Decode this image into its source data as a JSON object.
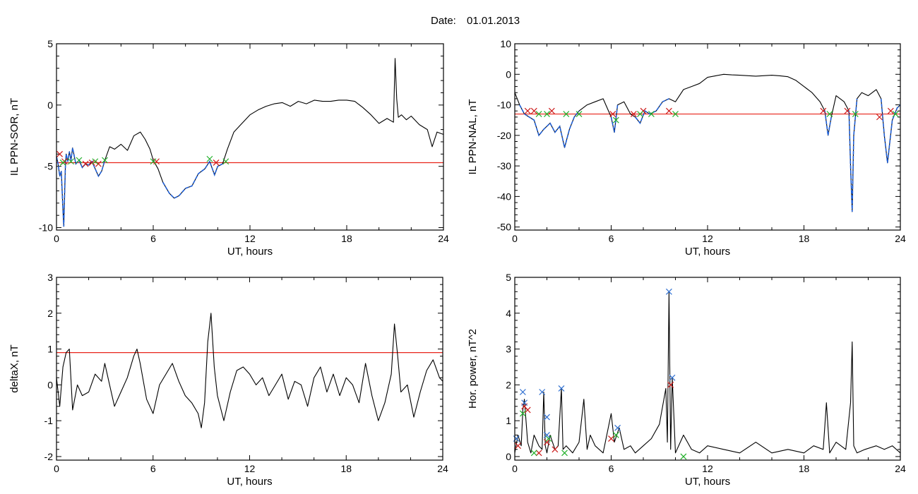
{
  "header": {
    "date_label": "Date:",
    "date_value": "01.01.2013"
  },
  "colors": {
    "trace": "#000000",
    "highlight": "#1f5fd6",
    "threshold": "#e8241a",
    "marker_red": "#cc1a1a",
    "marker_green": "#22b02a",
    "marker_blue": "#2f6fd0"
  },
  "chart_data": [
    {
      "id": "sor",
      "type": "line",
      "xlabel": "UT, hours",
      "ylabel": "IL PPN-SOR, nT",
      "xlim": [
        0,
        24
      ],
      "ylim": [
        -10.2,
        5
      ],
      "xticks": [
        0,
        6,
        12,
        18,
        24
      ],
      "yticks": [
        -10,
        -5,
        0,
        5
      ],
      "threshold": -4.7,
      "series": [
        {
          "x": [
            0,
            0.1,
            0.2,
            0.3,
            0.4,
            0.45,
            0.5,
            0.55,
            0.6,
            0.7,
            0.8,
            0.9,
            1.0,
            1.2,
            1.4,
            1.6,
            1.8,
            2.0,
            2.2,
            2.4,
            2.6,
            2.8,
            3.0,
            3.3,
            3.6,
            4.0,
            4.4,
            4.8,
            5.2,
            5.5,
            5.8,
            6.0,
            6.3,
            6.6,
            7.0,
            7.3,
            7.6,
            8.0,
            8.4,
            8.8,
            9.2,
            9.5,
            9.8,
            10.0,
            10.3,
            10.6,
            11.0,
            11.5,
            12.0,
            12.5,
            13.0,
            13.5,
            14.0,
            14.5,
            15.0,
            15.5,
            16.0,
            16.5,
            17.0,
            17.5,
            18.0,
            18.5,
            19.0,
            19.5,
            20.0,
            20.5,
            20.9,
            21.0,
            21.1,
            21.2,
            21.4,
            21.7,
            22.0,
            22.5,
            23.0,
            23.3,
            23.6,
            24.0
          ],
          "values": [
            -4.2,
            -4.8,
            -5.8,
            -5.4,
            -8.5,
            -9.9,
            -7.5,
            -5.0,
            -4.0,
            -4.6,
            -3.8,
            -4.5,
            -3.5,
            -4.8,
            -4.5,
            -5.1,
            -4.8,
            -4.9,
            -4.6,
            -5.2,
            -5.8,
            -5.4,
            -4.5,
            -3.4,
            -3.6,
            -3.2,
            -3.7,
            -2.5,
            -2.2,
            -2.8,
            -3.6,
            -4.5,
            -5.2,
            -6.3,
            -7.2,
            -7.6,
            -7.4,
            -6.8,
            -6.6,
            -5.6,
            -5.2,
            -4.6,
            -5.7,
            -5.0,
            -4.8,
            -3.6,
            -2.2,
            -1.5,
            -0.8,
            -0.4,
            -0.1,
            0.1,
            0.2,
            -0.1,
            0.3,
            0.1,
            0.4,
            0.3,
            0.3,
            0.4,
            0.4,
            0.3,
            -0.2,
            -0.8,
            -1.5,
            -1.1,
            -1.4,
            3.8,
            0.5,
            -1.0,
            -0.8,
            -1.2,
            -0.9,
            -1.6,
            -2.0,
            -3.4,
            -2.2,
            -2.4
          ]
        }
      ],
      "highlight_ranges": [
        [
          0,
          3.0
        ],
        [
          6.4,
          10.5
        ]
      ],
      "markers_red": [
        [
          0.2,
          -4.0
        ],
        [
          0.5,
          -4.6
        ],
        [
          1.8,
          -4.8
        ],
        [
          2.2,
          -4.7
        ],
        [
          2.6,
          -4.8
        ],
        [
          6.2,
          -4.6
        ],
        [
          9.9,
          -4.7
        ]
      ],
      "markers_green": [
        [
          0.4,
          -4.7
        ],
        [
          0.9,
          -4.6
        ],
        [
          1.4,
          -4.5
        ],
        [
          2.4,
          -4.6
        ],
        [
          3.0,
          -4.5
        ],
        [
          6.0,
          -4.6
        ],
        [
          9.5,
          -4.4
        ],
        [
          10.5,
          -4.6
        ]
      ],
      "markers_blue": []
    },
    {
      "id": "nal",
      "type": "line",
      "xlabel": "UT, hours",
      "ylabel": "IL PPN-NAL, nT",
      "xlim": [
        0,
        24
      ],
      "ylim": [
        -51,
        10
      ],
      "xticks": [
        0,
        6,
        12,
        18,
        24
      ],
      "yticks": [
        -50,
        -40,
        -30,
        -20,
        -10,
        0,
        10
      ],
      "threshold": -13,
      "series": [
        {
          "x": [
            0,
            0.3,
            0.6,
            0.9,
            1.2,
            1.5,
            1.8,
            2.0,
            2.2,
            2.5,
            2.8,
            3.1,
            3.4,
            3.7,
            4.0,
            4.5,
            5.0,
            5.5,
            6.0,
            6.2,
            6.4,
            6.8,
            7.2,
            7.5,
            7.8,
            8.1,
            8.4,
            8.8,
            9.2,
            9.6,
            10.0,
            10.5,
            11.0,
            11.5,
            12.0,
            12.5,
            13.0,
            13.5,
            14.0,
            15.0,
            16.0,
            16.5,
            17.0,
            17.5,
            18.0,
            18.5,
            19.0,
            19.3,
            19.5,
            19.7,
            20.0,
            20.5,
            20.8,
            20.9,
            21.0,
            21.1,
            21.3,
            21.6,
            22.0,
            22.5,
            22.8,
            23.0,
            23.2,
            23.5,
            23.8,
            24.0
          ],
          "values": [
            -6,
            -10,
            -13,
            -14,
            -15,
            -20,
            -18,
            -17,
            -16,
            -19,
            -17,
            -24,
            -18,
            -14,
            -12,
            -10,
            -9,
            -8,
            -14,
            -19,
            -10,
            -9,
            -13,
            -14,
            -16,
            -12,
            -13,
            -12,
            -9,
            -8,
            -9,
            -5,
            -4,
            -3,
            -1,
            -0.5,
            0,
            -0.2,
            -0.3,
            -0.6,
            -0.3,
            -0.5,
            -0.8,
            -2,
            -4,
            -6,
            -9,
            -12,
            -20,
            -14,
            -7,
            -9,
            -12,
            -30,
            -45,
            -20,
            -8,
            -6,
            -7,
            -5,
            -8,
            -20,
            -29,
            -15,
            -11,
            -10
          ]
        }
      ],
      "highlight_ranges": [
        [
          0.3,
          4.0
        ],
        [
          6.0,
          6.4
        ],
        [
          7.3,
          9.9
        ],
        [
          19.2,
          19.7
        ],
        [
          20.7,
          21.3
        ],
        [
          22.7,
          24
        ]
      ],
      "markers_red": [
        [
          0.8,
          -12
        ],
        [
          1.2,
          -12
        ],
        [
          2.3,
          -12
        ],
        [
          6.1,
          -13
        ],
        [
          7.4,
          -13
        ],
        [
          8.0,
          -12
        ],
        [
          9.6,
          -12
        ],
        [
          19.2,
          -12
        ],
        [
          20.7,
          -12
        ],
        [
          22.7,
          -14
        ],
        [
          23.4,
          -12
        ]
      ],
      "markers_green": [
        [
          1.5,
          -13
        ],
        [
          2.0,
          -13
        ],
        [
          3.2,
          -13
        ],
        [
          4.0,
          -13
        ],
        [
          6.3,
          -15
        ],
        [
          7.8,
          -13
        ],
        [
          8.5,
          -13
        ],
        [
          10.0,
          -13
        ],
        [
          19.6,
          -13
        ],
        [
          21.2,
          -13
        ],
        [
          23.7,
          -13
        ]
      ],
      "markers_blue": []
    },
    {
      "id": "deltax",
      "type": "line",
      "xlabel": "UT, hours",
      "ylabel": "deltaX, nT",
      "xlim": [
        0,
        24
      ],
      "ylim": [
        -2.1,
        3
      ],
      "xticks": [
        0,
        6,
        12,
        18,
        24
      ],
      "yticks": [
        -2,
        -1,
        0,
        1,
        2,
        3
      ],
      "threshold": 0.9,
      "series": [
        {
          "x": [
            0,
            0.2,
            0.4,
            0.6,
            0.8,
            1.0,
            1.3,
            1.6,
            2.0,
            2.4,
            2.8,
            3.0,
            3.3,
            3.6,
            4.0,
            4.4,
            4.8,
            5.0,
            5.2,
            5.6,
            6.0,
            6.4,
            6.8,
            7.2,
            7.6,
            8.0,
            8.4,
            8.8,
            9.0,
            9.2,
            9.4,
            9.6,
            9.8,
            10.0,
            10.4,
            10.8,
            11.2,
            11.6,
            12.0,
            12.4,
            12.8,
            13.2,
            13.6,
            14.0,
            14.4,
            14.8,
            15.2,
            15.6,
            16.0,
            16.4,
            16.8,
            17.2,
            17.6,
            18.0,
            18.4,
            18.8,
            19.2,
            19.6,
            20.0,
            20.4,
            20.8,
            21.0,
            21.2,
            21.4,
            21.8,
            22.2,
            22.6,
            23.0,
            23.4,
            23.8,
            24.0
          ],
          "values": [
            0.2,
            -0.6,
            0.5,
            0.9,
            1.0,
            -0.7,
            0.0,
            -0.3,
            -0.2,
            0.3,
            0.1,
            0.6,
            0.0,
            -0.6,
            -0.2,
            0.2,
            0.8,
            1.0,
            0.6,
            -0.4,
            -0.8,
            0.0,
            0.3,
            0.6,
            0.1,
            -0.3,
            -0.5,
            -0.8,
            -1.2,
            -0.5,
            1.2,
            2.0,
            0.5,
            -0.3,
            -1.0,
            -0.2,
            0.4,
            0.5,
            0.3,
            0.0,
            0.2,
            -0.3,
            0.0,
            0.3,
            -0.4,
            0.1,
            0.0,
            -0.6,
            0.2,
            0.5,
            -0.2,
            0.3,
            -0.3,
            0.2,
            0.0,
            -0.5,
            0.6,
            -0.3,
            -1.0,
            -0.5,
            0.3,
            1.7,
            0.8,
            -0.2,
            0.0,
            -0.9,
            -0.2,
            0.4,
            0.7,
            0.2,
            0.1
          ]
        }
      ],
      "highlight_ranges": [],
      "markers_red": [],
      "markers_green": [],
      "markers_blue": []
    },
    {
      "id": "power",
      "type": "line",
      "xlabel": "UT, hours",
      "ylabel": "Hor. power, nT^2",
      "xlim": [
        0,
        24
      ],
      "ylim": [
        -0.1,
        5
      ],
      "xticks": [
        0,
        6,
        12,
        18,
        24
      ],
      "yticks": [
        0,
        1,
        2,
        3,
        4,
        5
      ],
      "threshold": null,
      "series": [
        {
          "x": [
            0,
            0.2,
            0.4,
            0.5,
            0.6,
            0.7,
            0.8,
            1.0,
            1.2,
            1.5,
            1.7,
            1.8,
            1.9,
            2.0,
            2.2,
            2.5,
            2.7,
            2.9,
            3.0,
            3.2,
            3.6,
            4.0,
            4.3,
            4.5,
            4.7,
            5.0,
            5.5,
            6.0,
            6.2,
            6.5,
            6.8,
            7.2,
            7.5,
            8.0,
            8.5,
            9.0,
            9.4,
            9.5,
            9.6,
            9.7,
            9.8,
            10.0,
            10.5,
            11.0,
            11.5,
            12.0,
            13.0,
            14.0,
            15.0,
            16.0,
            17.0,
            18.0,
            18.6,
            19.2,
            19.4,
            19.6,
            20.0,
            20.6,
            20.9,
            21.0,
            21.1,
            21.3,
            21.8,
            22.5,
            23.0,
            23.5,
            24.0
          ],
          "values": [
            0.1,
            0.6,
            0.3,
            1.3,
            1.6,
            1.0,
            0.4,
            0.1,
            0.6,
            0.3,
            0.2,
            1.8,
            0.3,
            0.1,
            0.6,
            0.2,
            0.3,
            1.9,
            0.2,
            0.3,
            0.1,
            0.4,
            1.6,
            0.2,
            0.6,
            0.3,
            0.1,
            1.2,
            0.4,
            0.8,
            0.2,
            0.3,
            0.1,
            0.3,
            0.5,
            0.9,
            1.9,
            0.4,
            4.6,
            0.2,
            2.2,
            0.1,
            0.6,
            0.2,
            0.1,
            0.3,
            0.2,
            0.1,
            0.4,
            0.1,
            0.2,
            0.1,
            0.3,
            0.2,
            1.5,
            0.1,
            0.4,
            0.2,
            1.5,
            3.2,
            0.3,
            0.1,
            0.2,
            0.3,
            0.2,
            0.3,
            0.1
          ]
        }
      ],
      "highlight_ranges": [],
      "markers_red": [
        [
          0.2,
          0.3
        ],
        [
          0.6,
          1.4
        ],
        [
          0.8,
          1.3
        ],
        [
          1.5,
          0.1
        ],
        [
          2.0,
          0.4
        ],
        [
          2.5,
          0.2
        ],
        [
          6.0,
          0.5
        ],
        [
          9.7,
          2.0
        ]
      ],
      "markers_green": [
        [
          0.5,
          1.2
        ],
        [
          1.2,
          0.1
        ],
        [
          2.1,
          0.5
        ],
        [
          3.1,
          0.1
        ],
        [
          6.3,
          0.6
        ],
        [
          10.5,
          0.0
        ]
      ],
      "markers_blue": [
        [
          0.1,
          0.5
        ],
        [
          0.5,
          1.8
        ],
        [
          0.6,
          1.5
        ],
        [
          1.7,
          1.8
        ],
        [
          2.0,
          1.1
        ],
        [
          2.0,
          0.6
        ],
        [
          2.9,
          1.9
        ],
        [
          6.4,
          0.8
        ],
        [
          9.6,
          4.6
        ],
        [
          9.8,
          2.2
        ]
      ]
    }
  ]
}
